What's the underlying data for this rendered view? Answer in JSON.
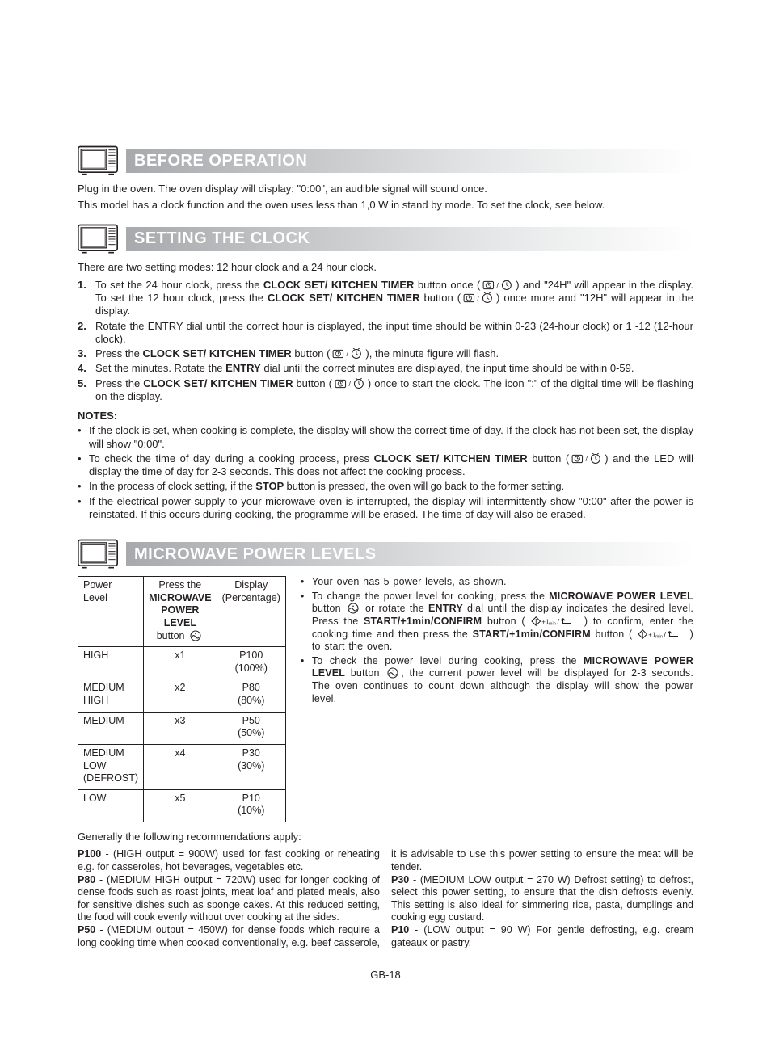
{
  "sections": {
    "before_op": {
      "title": "BEFORE OPERATION",
      "p1": "Plug in the oven. The oven display will display: \"0:00\", an audible signal will sound once.",
      "p2": "This model has a clock function and the oven uses less than 1,0 W in stand by mode. To set the clock, see below."
    },
    "clock": {
      "title": "SETTING THE CLOCK",
      "intro": "There are two setting modes: 12 hour clock and a 24 hour clock.",
      "steps": {
        "s1a": "To set the 24 hour clock, press the ",
        "s1b": " button once (",
        "s1c": ") and \"24H\" will appear in the display. To set the 12 hour clock, press the ",
        "s1d": " button (",
        "s1e": ") once more and \"12H\" will appear in the display.",
        "s2": "Rotate the ENTRY dial until the correct hour is displayed, the input time should be within 0-23 (24-hour clock) or 1 -12 (12-hour clock).",
        "s3a": "Press the ",
        "s3b": " button (",
        "s3c": "), the minute figure will flash.",
        "s4a": "Set the minutes. Rotate the ",
        "s4b": " dial until the correct minutes are displayed, the input time should be within 0-59.",
        "s5a": "Press the ",
        "s5b": " button (",
        "s5c": ") once to start the clock. The icon \":\" of the digital time will be flashing on the display."
      },
      "btn_clock": "CLOCK SET/ KITCHEN TIMER",
      "btn_entry": "ENTRY",
      "notes_h": "NOTES:",
      "notes": {
        "n1": "If the clock is set, when cooking is complete, the display will show the correct time of day. If the clock has not been set, the display will show \"0:00\".",
        "n2a": "To check the time of day during a cooking process, press ",
        "n2b": " button (",
        "n2c": ") and the LED will display the time of day for 2-3 seconds. This does not affect the cooking process.",
        "n3a": "In the process of clock setting, if the ",
        "n3b": " button is pressed, the oven will go back to the former setting.",
        "n4": "If the electrical power supply to your microwave oven is interrupted, the display will intermittently show \"0:00\" after the power is reinstated. If this occurs during cooking, the programme will be erased. The time of day will also be erased."
      },
      "btn_stop": "STOP"
    },
    "power": {
      "title": "MICROWAVE POWER LEVELS",
      "table": {
        "h1": "Power Level",
        "h2a": "Press the",
        "h2b": "MICROWAVE POWER LEVEL",
        "h2c": " button ",
        "h3": "Display (Percentage)",
        "rows": [
          {
            "lvl": "HIGH",
            "press": "x1",
            "disp": "P100",
            "pct": "(100%)"
          },
          {
            "lvl": "MEDIUM HIGH",
            "press": "x2",
            "disp": "P80",
            "pct": "(80%)"
          },
          {
            "lvl": "MEDIUM",
            "press": "x3",
            "disp": "P50",
            "pct": "(50%)"
          },
          {
            "lvl": "MEDIUM LOW (DEFROST)",
            "press": "x4",
            "disp": "P30",
            "pct": "(30%)"
          },
          {
            "lvl": "LOW",
            "press": "x5",
            "disp": "P10",
            "pct": "(10%)"
          }
        ]
      },
      "right": {
        "b1": "Your oven has 5 power levels, as shown.",
        "b2a": "To change the power level for cooking, press the ",
        "b2b": " button ",
        "b2c": " or rotate the ",
        "b2d": " dial until the display indicates the desired level. Press the ",
        "b2e": " button ( ",
        "b2f": " ) to confirm, enter the cooking time and then press the ",
        "b2g": " button ( ",
        "b2h": " ) to start the oven.",
        "b3a": "To check the power level during cooking, press the ",
        "b3b": " button ",
        "b3c": ", the current power level will be displayed for 2-3 seconds. The oven continues to count down although the display will show the power level.",
        "btn_mpl": "MICROWAVE POWER LEVEL",
        "btn_entry": "ENTRY",
        "btn_start": "START/+1min/CONFIRM"
      },
      "generally": "Generally the following recommendations apply:",
      "recs": {
        "p100_h": "P100",
        "p100": " - (HIGH output = 900W) used for fast cooking or reheating e.g. for casseroles, hot beverages, vegetables etc.",
        "p80_h": "P80",
        "p80": " - (MEDIUM HIGH output = 720W) used for longer cooking of dense foods such as roast joints, meat loaf and plated meals, also for sensitive dishes such as sponge cakes. At this reduced setting, the food will cook evenly without over cooking at the sides.",
        "p50_h": "P50",
        "p50": " - (MEDIUM output = 450W) for dense foods which require a long cooking time when cooked conventionally, e.g. beef casserole, it is advisable to use this power setting to ensure the meat will be tender.",
        "p30_h": "P30",
        "p30": " - (MEDIUM LOW output = 270 W) Defrost setting) to defrost, select this power setting, to ensure that the dish defrosts evenly. This setting is also ideal for simmering rice, pasta, dumplings and cooking egg custard.",
        "p10_h": "P10",
        "p10": " - (LOW output = 90 W) For gentle defrosting, e.g. cream gateaux or pastry."
      }
    }
  },
  "page_num": "GB-18",
  "icons": {
    "clock_timer": "⏱/⏲",
    "start_confirm": "◇+1min / ↵"
  },
  "colors": {
    "text": "#231f20",
    "hdr_grad_from": "#a7a9ac",
    "hdr_grad_mid": "#e6e7e8",
    "hdr_text": "#ffffff",
    "border": "#231f20"
  }
}
